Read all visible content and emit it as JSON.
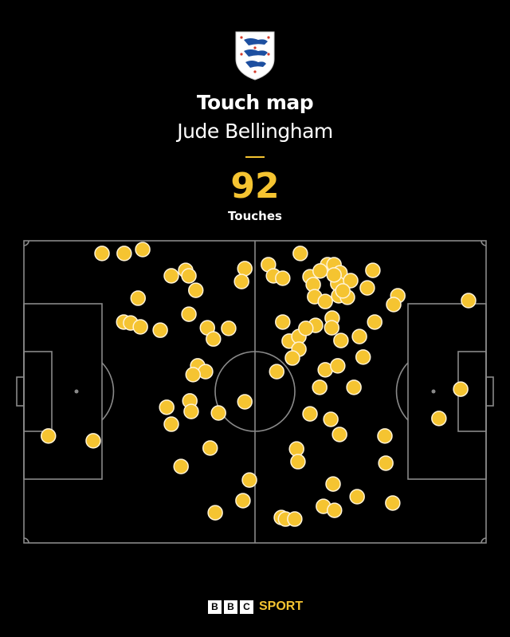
{
  "header": {
    "crest": "England three lions crest",
    "title": "Touch map",
    "player": "Jude Bellingham",
    "count": "92",
    "count_label": "Touches"
  },
  "footer": {
    "bbc_letters": [
      "B",
      "B",
      "C"
    ],
    "sport": "SPORT"
  },
  "colors": {
    "background": "#000000",
    "accent": "#f5c431",
    "pitch_lines": "#8a8a8a"
  },
  "chart_data": {
    "type": "scatter",
    "title": "Touch map",
    "description_scale": "pitch coordinates 0-100 along length (x, left to right) and width (y, top to bottom)",
    "xlim": [
      0,
      100
    ],
    "ylim": [
      0,
      100
    ],
    "grid": false,
    "points": [
      [
        16.9,
        4.2
      ],
      [
        21.7,
        4.2
      ],
      [
        25.7,
        2.9
      ],
      [
        31.9,
        11.6
      ],
      [
        35.0,
        9.8
      ],
      [
        35.7,
        11.6
      ],
      [
        37.2,
        16.4
      ],
      [
        47.8,
        9.2
      ],
      [
        47.1,
        13.5
      ],
      [
        24.7,
        19.0
      ],
      [
        35.7,
        24.3
      ],
      [
        21.6,
        26.9
      ],
      [
        23.1,
        27.2
      ],
      [
        25.2,
        28.5
      ],
      [
        29.5,
        29.6
      ],
      [
        39.7,
        28.8
      ],
      [
        44.3,
        29.0
      ],
      [
        41.0,
        32.5
      ],
      [
        37.6,
        41.4
      ],
      [
        39.3,
        43.3
      ],
      [
        36.6,
        44.3
      ],
      [
        59.8,
        4.2
      ],
      [
        52.9,
        7.9
      ],
      [
        54.0,
        11.6
      ],
      [
        56.0,
        12.4
      ],
      [
        61.9,
        11.9
      ],
      [
        62.6,
        14.5
      ],
      [
        62.9,
        18.5
      ],
      [
        65.2,
        20.1
      ],
      [
        65.7,
        7.9
      ],
      [
        67.1,
        7.9
      ],
      [
        68.4,
        10.6
      ],
      [
        67.9,
        14.2
      ],
      [
        70.7,
        13.2
      ],
      [
        68.1,
        18.2
      ],
      [
        70.0,
        18.7
      ],
      [
        75.5,
        9.8
      ],
      [
        74.3,
        15.6
      ],
      [
        80.9,
        18.2
      ],
      [
        80.0,
        21.1
      ],
      [
        96.2,
        19.8
      ],
      [
        56.0,
        26.9
      ],
      [
        63.1,
        28.0
      ],
      [
        66.7,
        25.6
      ],
      [
        66.6,
        28.8
      ],
      [
        75.9,
        26.9
      ],
      [
        57.4,
        33.2
      ],
      [
        59.5,
        31.7
      ],
      [
        59.5,
        35.9
      ],
      [
        58.1,
        38.8
      ],
      [
        68.6,
        33.0
      ],
      [
        72.6,
        31.7
      ],
      [
        73.4,
        38.5
      ],
      [
        54.7,
        43.3
      ],
      [
        65.2,
        42.7
      ],
      [
        67.9,
        41.4
      ],
      [
        64.0,
        48.5
      ],
      [
        71.4,
        48.5
      ],
      [
        94.5,
        49.1
      ],
      [
        30.9,
        55.1
      ],
      [
        35.9,
        53.0
      ],
      [
        36.2,
        56.5
      ],
      [
        31.9,
        60.7
      ],
      [
        42.1,
        57.0
      ],
      [
        47.8,
        53.3
      ],
      [
        5.3,
        64.6
      ],
      [
        15.0,
        66.2
      ],
      [
        40.3,
        68.6
      ],
      [
        34.0,
        74.7
      ],
      [
        48.8,
        79.2
      ],
      [
        47.4,
        86.0
      ],
      [
        41.4,
        90.0
      ],
      [
        61.9,
        57.3
      ],
      [
        66.4,
        59.1
      ],
      [
        68.3,
        64.1
      ],
      [
        78.1,
        64.6
      ],
      [
        59.0,
        68.9
      ],
      [
        59.3,
        73.1
      ],
      [
        78.3,
        73.6
      ],
      [
        89.8,
        58.8
      ],
      [
        66.9,
        80.5
      ],
      [
        72.1,
        84.7
      ],
      [
        79.8,
        86.8
      ],
      [
        64.8,
        87.9
      ],
      [
        67.2,
        89.2
      ],
      [
        55.7,
        91.6
      ],
      [
        56.6,
        92.1
      ],
      [
        58.6,
        92.1
      ],
      [
        67.1,
        11.3
      ],
      [
        69.0,
        16.6
      ],
      [
        64.1,
        10.0
      ],
      [
        61.0,
        29.0
      ]
    ]
  }
}
